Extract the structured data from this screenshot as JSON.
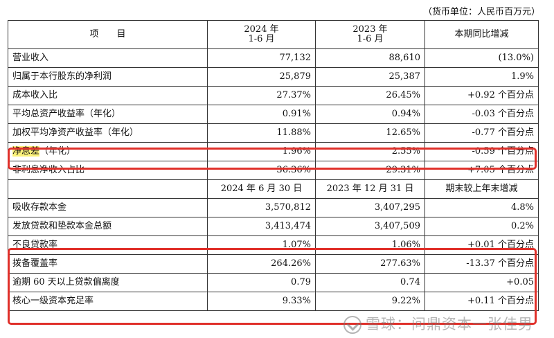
{
  "unit_note": "（货币单位：人民币百万元）",
  "header": {
    "item": "项　　目",
    "col1_line1": "2024 年",
    "col1_line2": "1-6 月",
    "col2_line1": "2023 年",
    "col2_line2": "1-6 月",
    "col3": "本期同比增减"
  },
  "rows_a": [
    {
      "label": "营业收入",
      "v1": "77,132",
      "v2": "88,610",
      "chg": "(13.0%)"
    },
    {
      "label": "归属于本行股东的净利润",
      "v1": "25,879",
      "v2": "25,387",
      "chg": "1.9%"
    },
    {
      "label": "成本收入比",
      "v1": "27.37%",
      "v2": "26.45%",
      "chg": "+0.92 个百分点"
    },
    {
      "label": "平均总资产收益率（年化）",
      "v1": "0.91%",
      "v2": "0.94%",
      "chg": "-0.03 个百分点"
    },
    {
      "label": "加权平均净资产收益率（年化）",
      "v1": "11.88%",
      "v2": "12.65%",
      "chg": "-0.77 个百分点"
    },
    {
      "label_hl": "净息差",
      "label_rest": "（年化）",
      "v1": "1.96%",
      "v2": "2.55%",
      "chg": "-0.59 个百分点"
    },
    {
      "label": "非利息净收入占比",
      "v1": "36.36%",
      "v2": "29.31%",
      "chg": "+7.05 个百分点"
    }
  ],
  "header2": {
    "col1": "2024 年 6 月 30 日",
    "col2": "2023 年 12 月 31 日",
    "col3": "期末较上年末增减"
  },
  "rows_b": [
    {
      "label": "吸收存款本金",
      "v1": "3,570,812",
      "v2": "3,407,295",
      "chg": "4.8%"
    },
    {
      "label": "发放贷款和垫款本金总额",
      "v1": "3,413,474",
      "v2": "3,407,509",
      "chg": "0.2%"
    },
    {
      "label": "不良贷款率",
      "v1": "1.07%",
      "v2": "1.06%",
      "chg": "+0.01 个百分点"
    },
    {
      "label": "拨备覆盖率",
      "v1": "264.26%",
      "v2": "277.63%",
      "chg": "-13.37 个百分点"
    },
    {
      "label": "逾期 60 天以上贷款偏离度",
      "v1": "0.79",
      "v2": "0.74",
      "chg": "+0.05"
    },
    {
      "label": "核心一级资本充足率",
      "v1": "9.33%",
      "v2": "9.22%",
      "chg": "+0.11 个百分点"
    }
  ],
  "watermark": "雪球：问鼎资本一张佳男",
  "colors": {
    "highlight": "#fbf27a",
    "box": "#e0302a"
  }
}
